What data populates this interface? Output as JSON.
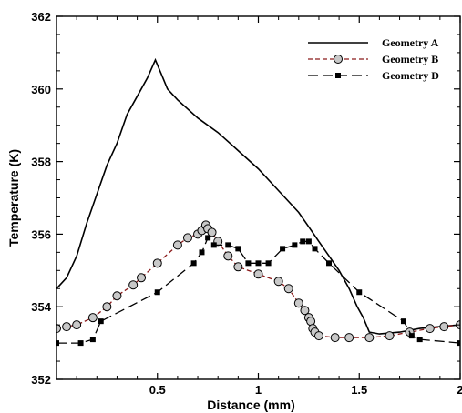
{
  "chart_data": {
    "type": "line",
    "xlabel": "Distance (mm)",
    "ylabel": "Temperature (K)",
    "xlim": [
      0,
      2
    ],
    "ylim": [
      352,
      362
    ],
    "xticks": [
      0.5,
      1,
      1.5,
      2
    ],
    "xtick_labels": [
      "0.5",
      "1",
      "1.5",
      "2"
    ],
    "yticks": [
      352,
      354,
      356,
      358,
      360,
      362
    ],
    "ytick_labels": [
      "352",
      "354",
      "356",
      "358",
      "360",
      "362"
    ],
    "grid": false,
    "legend_position": "top-right",
    "series": [
      {
        "name": "Geometry A",
        "color": "#000000",
        "style": "solid",
        "marker": "none",
        "x": [
          0.0,
          0.05,
          0.1,
          0.15,
          0.2,
          0.25,
          0.3,
          0.35,
          0.4,
          0.45,
          0.49,
          0.52,
          0.55,
          0.6,
          0.7,
          0.8,
          0.9,
          1.0,
          1.1,
          1.2,
          1.25,
          1.3,
          1.35,
          1.4,
          1.45,
          1.49,
          1.52,
          1.55,
          1.6,
          1.7,
          1.8,
          1.9,
          2.0
        ],
        "y": [
          354.5,
          354.8,
          355.4,
          356.3,
          357.1,
          357.9,
          358.5,
          359.3,
          359.8,
          360.3,
          360.8,
          360.4,
          360.0,
          359.7,
          359.2,
          358.8,
          358.3,
          357.8,
          357.2,
          356.6,
          356.2,
          355.8,
          355.4,
          355.0,
          354.5,
          354.0,
          353.7,
          353.3,
          353.25,
          353.3,
          353.4,
          353.45,
          353.5
        ]
      },
      {
        "name": "Geometry B",
        "color": "#8b1a1a",
        "style": "dashed",
        "marker": "circle",
        "x": [
          0.0,
          0.05,
          0.1,
          0.18,
          0.25,
          0.3,
          0.38,
          0.42,
          0.5,
          0.6,
          0.65,
          0.7,
          0.72,
          0.74,
          0.75,
          0.77,
          0.8,
          0.85,
          0.9,
          1.0,
          1.1,
          1.15,
          1.2,
          1.23,
          1.25,
          1.26,
          1.27,
          1.28,
          1.3,
          1.38,
          1.45,
          1.55,
          1.65,
          1.75,
          1.85,
          1.92,
          2.0
        ],
        "y": [
          353.4,
          353.45,
          353.5,
          353.7,
          354.0,
          354.3,
          354.6,
          354.8,
          355.2,
          355.7,
          355.9,
          356.0,
          356.1,
          356.25,
          356.15,
          356.05,
          355.8,
          355.4,
          355.1,
          354.9,
          354.7,
          354.5,
          354.1,
          353.9,
          353.7,
          353.6,
          353.4,
          353.3,
          353.2,
          353.15,
          353.15,
          353.15,
          353.2,
          353.3,
          353.4,
          353.45,
          353.5
        ]
      },
      {
        "name": "Geometry D",
        "color": "#000000",
        "style": "longdash",
        "marker": "square",
        "x": [
          0.0,
          0.12,
          0.18,
          0.22,
          0.5,
          0.68,
          0.72,
          0.75,
          0.78,
          0.85,
          0.9,
          0.95,
          1.0,
          1.05,
          1.12,
          1.18,
          1.22,
          1.25,
          1.28,
          1.35,
          1.5,
          1.72,
          1.76,
          1.8,
          2.0
        ],
        "y": [
          353.0,
          353.0,
          353.1,
          353.6,
          354.4,
          355.2,
          355.5,
          355.9,
          355.7,
          355.7,
          355.6,
          355.2,
          355.2,
          355.2,
          355.6,
          355.7,
          355.8,
          355.8,
          355.6,
          355.2,
          354.4,
          353.6,
          353.2,
          353.1,
          353.0
        ]
      }
    ]
  }
}
